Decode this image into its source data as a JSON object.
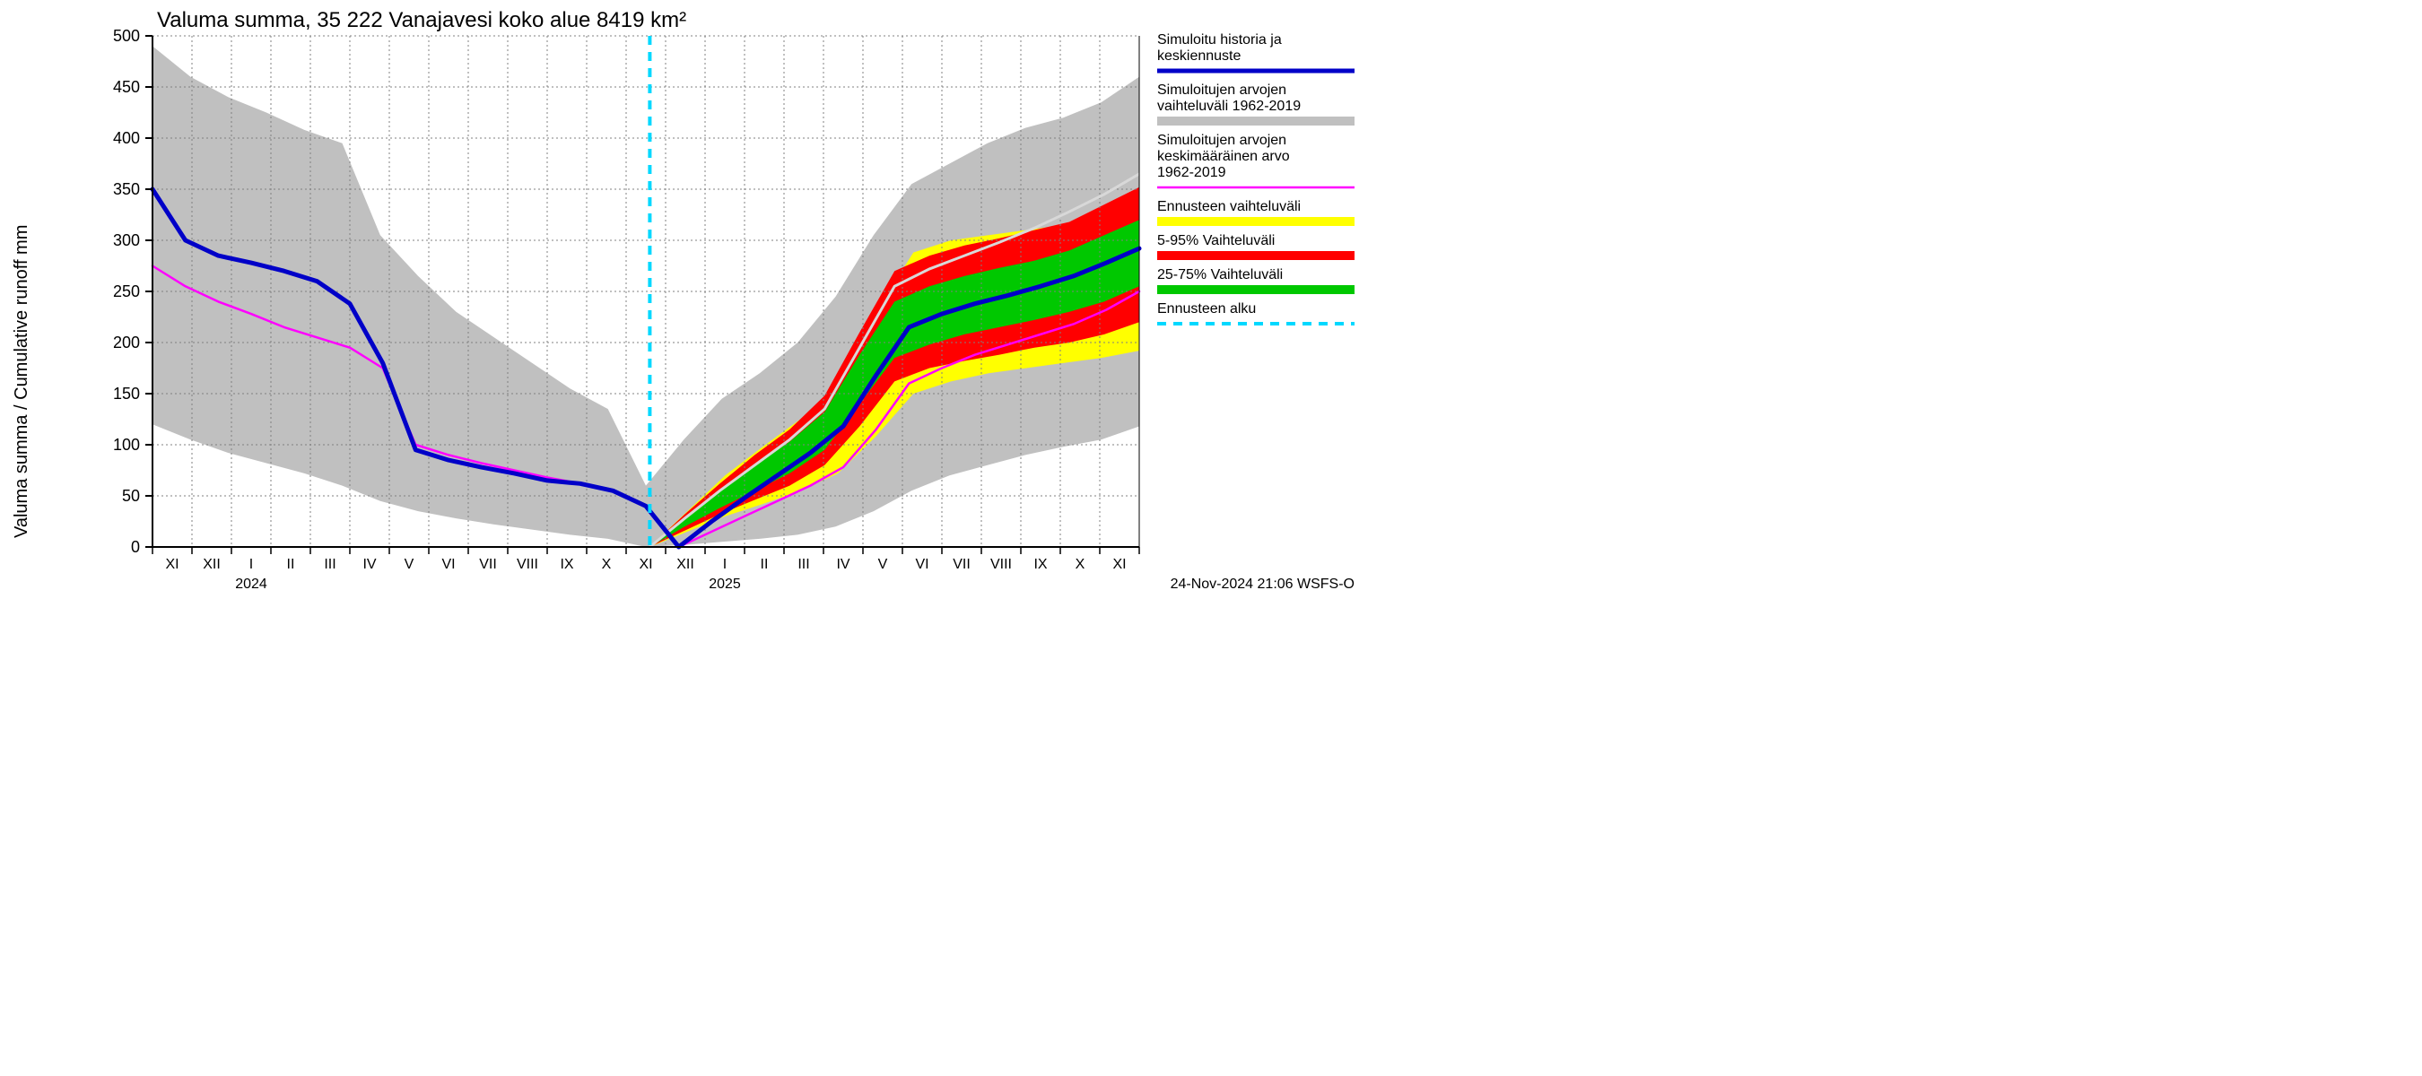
{
  "title": "Valuma summa, 35 222 Vanajavesi koko alue 8419 km²",
  "y_axis_label": "Valuma summa / Cumulative runoff    mm",
  "footer": "24-Nov-2024 21:06 WSFS-O",
  "chart": {
    "type": "line-area",
    "background_color": "#ffffff",
    "grid_color": "#808080",
    "axis_color": "#000000",
    "ylim": [
      0,
      500
    ],
    "ytick_step": 50,
    "yticks": [
      0,
      50,
      100,
      150,
      200,
      250,
      300,
      350,
      400,
      450,
      500
    ],
    "months": [
      "XI",
      "XII",
      "I",
      "II",
      "III",
      "IV",
      "V",
      "VI",
      "VII",
      "VIII",
      "IX",
      "X",
      "XI",
      "XII",
      "I",
      "II",
      "III",
      "IV",
      "V",
      "VI",
      "VII",
      "VIII",
      "IX",
      "X",
      "XI"
    ],
    "year_left": "2024",
    "year_right": "2025",
    "forecast_start_x": 12.6,
    "series": {
      "gray_band": {
        "color": "#c0c0c0",
        "upper": [
          490,
          460,
          440,
          425,
          408,
          395,
          305,
          265,
          230,
          205,
          180,
          155,
          135,
          60,
          105,
          145,
          170,
          200,
          245,
          305,
          355,
          375,
          395,
          410,
          420,
          435,
          460
        ],
        "lower": [
          120,
          105,
          92,
          82,
          72,
          60,
          45,
          35,
          28,
          22,
          17,
          12,
          8,
          0,
          2,
          5,
          8,
          12,
          20,
          35,
          55,
          70,
          80,
          90,
          98,
          105,
          118
        ]
      },
      "yellow_band": {
        "color": "#ffff00",
        "upper": [
          0,
          35,
          70,
          98,
          125,
          160,
          230,
          288,
          300,
          305,
          310,
          315,
          320,
          330
        ],
        "lower": [
          0,
          15,
          30,
          42,
          55,
          72,
          108,
          150,
          162,
          170,
          175,
          180,
          185,
          192
        ]
      },
      "red_band": {
        "color": "#ff0000",
        "upper": [
          0,
          32,
          62,
          90,
          115,
          148,
          210,
          270,
          285,
          295,
          302,
          310,
          318,
          335,
          352
        ],
        "lower": [
          0,
          16,
          32,
          46,
          60,
          80,
          118,
          162,
          175,
          182,
          188,
          195,
          200,
          208,
          220
        ]
      },
      "green_band": {
        "color": "#00c800",
        "upper": [
          0,
          28,
          55,
          80,
          103,
          132,
          188,
          240,
          255,
          265,
          273,
          280,
          290,
          305,
          320
        ],
        "lower": [
          0,
          20,
          38,
          55,
          72,
          95,
          140,
          185,
          198,
          208,
          215,
          222,
          230,
          240,
          255
        ]
      },
      "blue_line": {
        "color": "#0000c8",
        "width": 5,
        "y": [
          350,
          300,
          285,
          278,
          270,
          260,
          238,
          180,
          95,
          85,
          78,
          72,
          65,
          62,
          55,
          40,
          0,
          25,
          48,
          70,
          92,
          118,
          168,
          215,
          228,
          238,
          246,
          255,
          265,
          278,
          292
        ]
      },
      "magenta_line": {
        "color": "#ff00ff",
        "width": 2.5,
        "y": [
          275,
          255,
          240,
          228,
          215,
          205,
          195,
          175,
          100,
          90,
          82,
          75,
          68,
          62,
          55,
          40,
          0,
          15,
          30,
          45,
          60,
          78,
          115,
          160,
          175,
          188,
          198,
          208,
          218,
          232,
          250
        ]
      },
      "white_line_right": {
        "color": "#d8d8d8",
        "width": 3,
        "y": [
          0,
          28,
          55,
          80,
          105,
          135,
          195,
          255,
          272,
          285,
          298,
          312,
          328,
          345,
          365
        ]
      },
      "cyan_dash": {
        "color": "#00d8ff",
        "width": 4,
        "dash": "10,8"
      }
    }
  },
  "legend": {
    "items": [
      {
        "label1": "Simuloitu historia ja",
        "label2": "keskiennuste",
        "type": "line",
        "color": "#0000c8",
        "width": 5
      },
      {
        "label1": "Simuloitujen arvojen",
        "label2": "vaihteluväli 1962-2019",
        "type": "line",
        "color": "#c0c0c0",
        "width": 10
      },
      {
        "label1": "Simuloitujen arvojen",
        "label2": "keskimääräinen arvo",
        "label3": "  1962-2019",
        "type": "line",
        "color": "#ff00ff",
        "width": 2.5
      },
      {
        "label1": "Ennusteen vaihteluväli",
        "type": "line",
        "color": "#ffff00",
        "width": 10
      },
      {
        "label1": "5-95% Vaihteluväli",
        "type": "line",
        "color": "#ff0000",
        "width": 10
      },
      {
        "label1": "25-75% Vaihteluväli",
        "type": "line",
        "color": "#00c800",
        "width": 10
      },
      {
        "label1": "Ennusteen alku",
        "type": "dash",
        "color": "#00d8ff",
        "width": 4
      }
    ]
  }
}
